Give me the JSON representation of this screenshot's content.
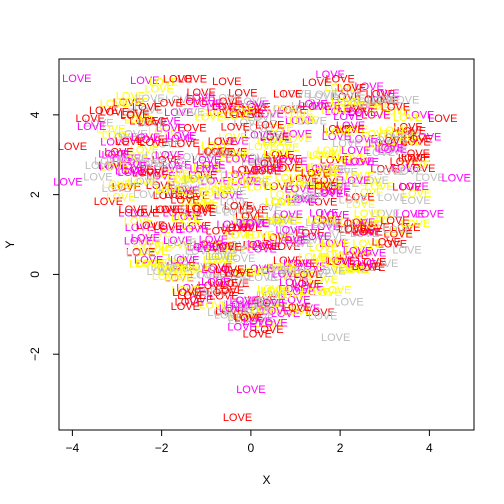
{
  "chart_data": {
    "type": "scatter",
    "title": "",
    "xlabel": "X",
    "ylabel": "Y",
    "xlim": [
      -4.3,
      5.0
    ],
    "ylim": [
      -3.9,
      5.4
    ],
    "x_ticks": [
      -4,
      -2,
      0,
      2,
      4
    ],
    "y_ticks": [
      -2,
      0,
      2,
      4
    ],
    "grid": false,
    "marker_text": "LOVE",
    "palette": [
      "#FF0000",
      "#FF00FF",
      "#FFFF00",
      "#BEBEBE"
    ],
    "points_estimated": 600,
    "notable_points": [
      {
        "x": -3.9,
        "y": 4.9,
        "color": "#FF00FF"
      },
      {
        "x": -3.3,
        "y": 4.1,
        "color": "#FF0000"
      },
      {
        "x": -3.6,
        "y": 3.9,
        "color": "#FF0000"
      },
      {
        "x": -2.6,
        "y": 4.0,
        "color": "#FF0000"
      },
      {
        "x": -4.0,
        "y": 3.2,
        "color": "#FF0000"
      },
      {
        "x": -4.1,
        "y": 2.3,
        "color": "#FF00FF"
      },
      {
        "x": 4.3,
        "y": 3.9,
        "color": "#FF0000"
      },
      {
        "x": 4.8,
        "y": 4.0,
        "color": "#FF00FF"
      },
      {
        "x": 5.0,
        "y": 3.4,
        "color": "#BEBEBE"
      },
      {
        "x": 4.6,
        "y": 2.4,
        "color": "#FF00FF"
      },
      {
        "x": 4.0,
        "y": 1.5,
        "color": "#FF00FF"
      },
      {
        "x": 3.5,
        "y": 0.6,
        "color": "#BEBEBE"
      },
      {
        "x": 2.2,
        "y": -0.7,
        "color": "#BEBEBE"
      },
      {
        "x": 1.9,
        "y": -1.6,
        "color": "#BEBEBE"
      },
      {
        "x": 0.0,
        "y": -2.9,
        "color": "#FF00FF"
      },
      {
        "x": -0.3,
        "y": -3.6,
        "color": "#FF0000"
      }
    ]
  }
}
